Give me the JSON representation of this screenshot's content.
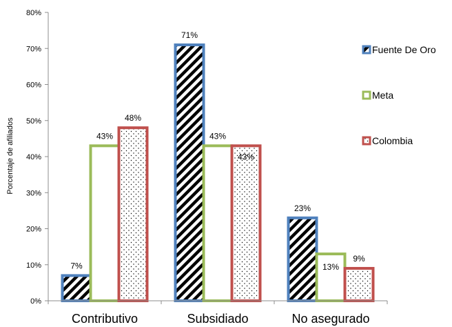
{
  "chart_data": {
    "type": "bar",
    "categories": [
      "Contributivo",
      "Subsidiado",
      "No asegurado"
    ],
    "series": [
      {
        "name": "Fuente De Oro",
        "values": [
          7,
          71,
          23
        ],
        "labels": [
          "7%",
          "71%",
          "23%"
        ],
        "color": "#4f81bd",
        "fill": "diagonal-stripes"
      },
      {
        "name": "Meta",
        "values": [
          43,
          43,
          13
        ],
        "labels": [
          "43%",
          "43%",
          "13%"
        ],
        "color": "#9bbb59",
        "fill": "white"
      },
      {
        "name": "Colombia",
        "values": [
          48,
          43,
          9
        ],
        "labels": [
          "48%",
          "43%",
          "9%"
        ],
        "color": "#c0504d",
        "fill": "dots"
      }
    ],
    "ylabel": "Porcentaje de afiliados",
    "ylim": [
      0,
      80
    ],
    "yticks": [
      "0%",
      "10%",
      "20%",
      "30%",
      "40%",
      "50%",
      "60%",
      "70%",
      "80%"
    ],
    "legend_position": "right",
    "grid": false
  }
}
